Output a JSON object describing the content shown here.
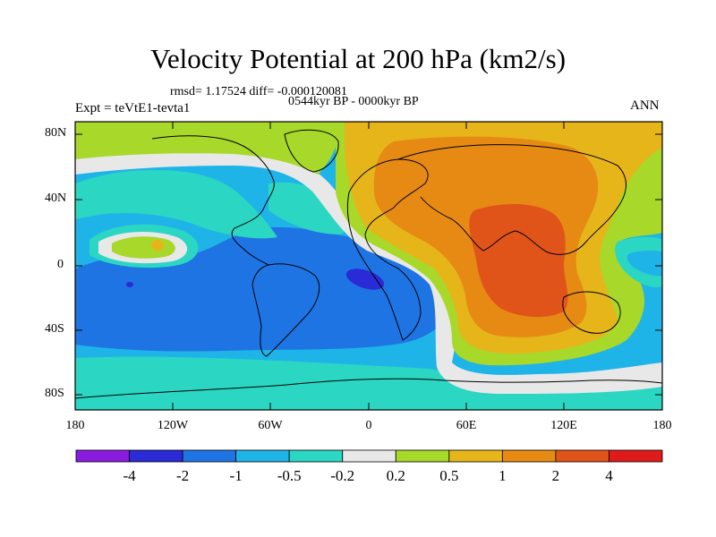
{
  "title": "Velocity Potential at 200 hPa (km2/s)",
  "stats_line": "rmsd= 1.17524 diff= -0.000120081",
  "period": "0544kyr BP - 0000kyr BP",
  "experiment": "Expt = teVtE1-tevta1",
  "season": "ANN",
  "axes": {
    "lat_ticks": [
      "80N",
      "40N",
      "0",
      "40S",
      "80S"
    ],
    "lon_ticks": [
      "180",
      "120W",
      "60W",
      "0",
      "60E",
      "120E",
      "180"
    ]
  },
  "colorbar": {
    "labels": [
      "-4",
      "-2",
      "-1",
      "-0.5",
      "-0.2",
      "0.2",
      "0.5",
      "1",
      "2",
      "4"
    ],
    "colors": [
      "#8a1be0",
      "#2a2ad6",
      "#1f74e3",
      "#1fb4e8",
      "#2bd6c3",
      "#e8e8e8",
      "#a8d82a",
      "#e6b51a",
      "#e68a14",
      "#e0541a",
      "#e01a1a"
    ]
  },
  "palette": {
    "ocean_neg_strong": "#1f74e3",
    "ocean_neg": "#1fb4e8",
    "neg_weak": "#2bd6c3",
    "neutral": "#e8e8e8",
    "pos_weak": "#a8d82a",
    "pos": "#e6b51a",
    "pos_mid": "#e68a14",
    "pos_strong": "#e0541a",
    "min_core": "#2a2ad6"
  }
}
